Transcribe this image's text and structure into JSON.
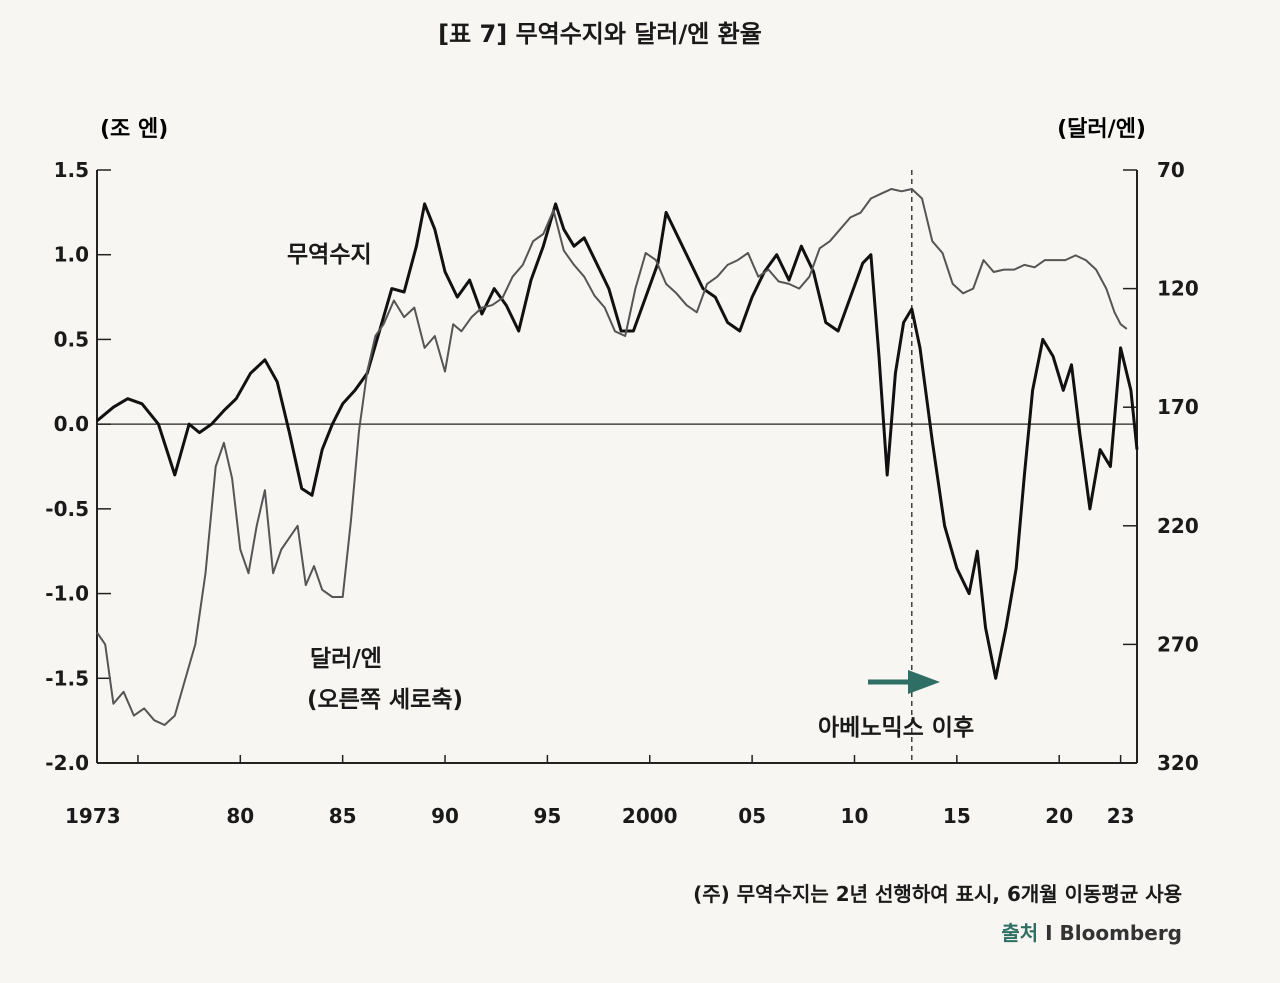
{
  "title": "[표 7] 무역수지와 달러/엔 환율",
  "left_unit": "(조 엔)",
  "right_unit": "(달러/엔)",
  "annotations": {
    "trade": "무역수지",
    "usdjpy_line1": "달러/엔",
    "usdjpy_line2": "(오른쪽 세로축)",
    "abenomics": "아베노믹스 이후"
  },
  "note": "(주) 무역수지는 2년 선행하여 표시, 6개월 이동평균 사용",
  "source_label": "출처",
  "source_sep": "I",
  "source_name": "Bloomberg",
  "colors": {
    "trade": "#111111",
    "usdjpy": "#555555",
    "arrow": "#2e6e64"
  },
  "chart_data": {
    "type": "line",
    "x_range": [
      1973,
      2023.8
    ],
    "x_tick_labels": [
      {
        "x": 1973,
        "label": "1973"
      },
      {
        "x": 1980,
        "label": "80"
      },
      {
        "x": 1985,
        "label": "85"
      },
      {
        "x": 1990,
        "label": "90"
      },
      {
        "x": 1995,
        "label": "95"
      },
      {
        "x": 2000,
        "label": "2000"
      },
      {
        "x": 2005,
        "label": "05"
      },
      {
        "x": 2010,
        "label": "10"
      },
      {
        "x": 2015,
        "label": "15"
      },
      {
        "x": 2020,
        "label": "20"
      },
      {
        "x": 2023,
        "label": "23"
      }
    ],
    "x_minor_ticks": [
      1975,
      1980,
      1985,
      1990,
      1995,
      2000,
      2005,
      2010,
      2015,
      2020,
      2023
    ],
    "y_left": {
      "range": [
        -2.0,
        1.5
      ],
      "ticks": [
        1.5,
        1.0,
        0.5,
        0.0,
        -0.5,
        -1.0,
        -1.5,
        -2.0
      ],
      "tick_labels": [
        "1.5",
        "1.0",
        "0.5",
        "0.0",
        "-0.5",
        "-1.0",
        "-1.5",
        "-2.0"
      ]
    },
    "y_right": {
      "range": [
        320,
        70
      ],
      "inverted": true,
      "ticks": [
        70,
        120,
        170,
        220,
        270,
        320
      ],
      "tick_labels": [
        "70",
        "120",
        "170",
        "220",
        "270",
        "320"
      ]
    },
    "vertical_marker_x": 2012.8,
    "series": [
      {
        "key": "trade",
        "axis": "left",
        "x": [
          1973.0,
          1973.8,
          1974.5,
          1975.2,
          1976.0,
          1976.8,
          1977.5,
          1978.0,
          1978.6,
          1979.2,
          1979.8,
          1980.5,
          1981.2,
          1981.8,
          1982.4,
          1983.0,
          1983.5,
          1984.0,
          1984.5,
          1985.0,
          1985.6,
          1986.2,
          1986.8,
          1987.4,
          1988.0,
          1988.6,
          1989.0,
          1989.5,
          1990.0,
          1990.6,
          1991.2,
          1991.8,
          1992.4,
          1993.0,
          1993.6,
          1994.2,
          1994.8,
          1995.4,
          1995.8,
          1996.3,
          1996.8,
          1997.4,
          1998.0,
          1998.6,
          1999.2,
          1999.8,
          2000.4,
          2000.8,
          2001.4,
          2002.0,
          2002.6,
          2003.2,
          2003.8,
          2004.4,
          2005.0,
          2005.6,
          2006.2,
          2006.8,
          2007.4,
          2008.0,
          2008.6,
          2009.2,
          2009.8,
          2010.4,
          2010.8,
          2011.2,
          2011.6,
          2012.0,
          2012.4,
          2012.8,
          2013.2,
          2013.8,
          2014.4,
          2015.0,
          2015.6,
          2016.0,
          2016.4,
          2016.9,
          2017.4,
          2017.9,
          2018.3,
          2018.7,
          2019.2,
          2019.7,
          2020.2,
          2020.6,
          2021.0,
          2021.5,
          2022.0,
          2022.5,
          2023.0,
          2023.5,
          2023.8
        ],
        "y": [
          0.02,
          0.1,
          0.15,
          0.12,
          0.0,
          -0.3,
          0.0,
          -0.05,
          0.0,
          0.08,
          0.15,
          0.3,
          0.38,
          0.25,
          -0.05,
          -0.38,
          -0.42,
          -0.15,
          0.0,
          0.12,
          0.2,
          0.3,
          0.55,
          0.8,
          0.78,
          1.05,
          1.3,
          1.15,
          0.9,
          0.75,
          0.85,
          0.65,
          0.8,
          0.7,
          0.55,
          0.85,
          1.05,
          1.3,
          1.15,
          1.05,
          1.1,
          0.95,
          0.8,
          0.55,
          0.55,
          0.75,
          0.95,
          1.25,
          1.1,
          0.95,
          0.8,
          0.75,
          0.6,
          0.55,
          0.75,
          0.9,
          1.0,
          0.85,
          1.05,
          0.9,
          0.6,
          0.55,
          0.75,
          0.95,
          1.0,
          0.4,
          -0.3,
          0.3,
          0.6,
          0.68,
          0.45,
          -0.1,
          -0.6,
          -0.85,
          -1.0,
          -0.75,
          -1.2,
          -1.5,
          -1.2,
          -0.85,
          -0.3,
          0.2,
          0.5,
          0.4,
          0.2,
          0.35,
          -0.05,
          -0.5,
          -0.15,
          -0.25,
          0.45,
          0.2,
          -0.15
        ]
      },
      {
        "key": "usdjpy",
        "axis": "right",
        "x": [
          1973.0,
          1973.4,
          1973.8,
          1974.3,
          1974.8,
          1975.3,
          1975.8,
          1976.3,
          1976.8,
          1977.3,
          1977.8,
          1978.3,
          1978.8,
          1979.2,
          1979.6,
          1980.0,
          1980.4,
          1980.8,
          1981.2,
          1981.6,
          1982.0,
          1982.4,
          1982.8,
          1983.2,
          1983.6,
          1984.0,
          1984.5,
          1985.0,
          1985.4,
          1985.8,
          1986.2,
          1986.6,
          1987.0,
          1987.5,
          1988.0,
          1988.5,
          1989.0,
          1989.5,
          1990.0,
          1990.4,
          1990.8,
          1991.3,
          1991.8,
          1992.3,
          1992.8,
          1993.3,
          1993.8,
          1994.3,
          1994.8,
          1995.3,
          1995.8,
          1996.3,
          1996.8,
          1997.3,
          1997.8,
          1998.3,
          1998.8,
          1999.3,
          1999.8,
          2000.3,
          2000.8,
          2001.3,
          2001.8,
          2002.3,
          2002.8,
          2003.3,
          2003.8,
          2004.3,
          2004.8,
          2005.3,
          2005.8,
          2006.3,
          2006.8,
          2007.3,
          2007.8,
          2008.3,
          2008.8,
          2009.3,
          2009.8,
          2010.3,
          2010.8,
          2011.3,
          2011.8,
          2012.3,
          2012.8,
          2013.3,
          2013.8,
          2014.3,
          2014.8,
          2015.3,
          2015.8,
          2016.3,
          2016.8,
          2017.3,
          2017.8,
          2018.3,
          2018.8,
          2019.3,
          2019.8,
          2020.3,
          2020.8,
          2021.3,
          2021.8,
          2022.3,
          2022.7,
          2023.0,
          2023.3
        ],
        "y": [
          265,
          270,
          295,
          290,
          300,
          297,
          302,
          304,
          300,
          285,
          270,
          240,
          195,
          185,
          200,
          230,
          240,
          220,
          205,
          240,
          230,
          225,
          220,
          245,
          237,
          247,
          250,
          250,
          218,
          180,
          155,
          140,
          135,
          125,
          132,
          128,
          145,
          140,
          155,
          135,
          138,
          132,
          128,
          127,
          124,
          115,
          110,
          100,
          97,
          87,
          104,
          110,
          115,
          123,
          128,
          138,
          140,
          120,
          105,
          108,
          118,
          122,
          127,
          130,
          118,
          115,
          110,
          108,
          105,
          115,
          112,
          117,
          118,
          120,
          115,
          103,
          100,
          95,
          90,
          88,
          82,
          80,
          78,
          79,
          78,
          82,
          100,
          105,
          118,
          122,
          120,
          108,
          113,
          112,
          112,
          110,
          111,
          108,
          108,
          108,
          106,
          108,
          112,
          120,
          130,
          135,
          137
        ]
      }
    ]
  }
}
